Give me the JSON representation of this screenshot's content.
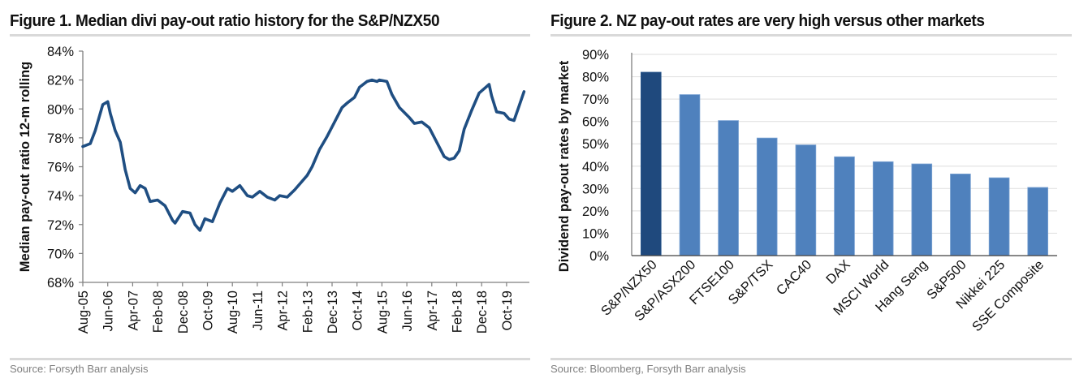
{
  "figures": {
    "left": {
      "title": "Figure 1. Median divi pay-out ratio history for the S&P/NZX50",
      "source": "Source: Forsyth Barr analysis"
    },
    "right": {
      "title": "Figure 2. NZ pay-out rates are very high versus other markets",
      "source": "Source: Bloomberg, Forsyth Barr analysis"
    }
  },
  "colors": {
    "line": "#1f4e82",
    "bar_highlight": "#1f497d",
    "bar": "#4f81bd",
    "grid": "#e3e3e3",
    "axis": "#7f7f7f"
  },
  "chart_data": [
    {
      "type": "line",
      "title": "Median divi pay-out ratio history for the S&P/NZX50",
      "xlabel": "",
      "ylabel": "Median pay-out  ratio 12-m rolling",
      "ylim": [
        68,
        84
      ],
      "yticks": [
        "68%",
        "70%",
        "72%",
        "74%",
        "76%",
        "78%",
        "80%",
        "82%",
        "84%"
      ],
      "ytick_values": [
        68,
        70,
        72,
        74,
        76,
        78,
        80,
        82,
        84
      ],
      "xticks": [
        "Aug-05",
        "Jun-06",
        "Apr-07",
        "Feb-08",
        "Dec-08",
        "Oct-09",
        "Aug-10",
        "Jun-11",
        "Apr-12",
        "Feb-13",
        "Dec-13",
        "Oct-14",
        "Aug-15",
        "Jun-16",
        "Apr-17",
        "Feb-18",
        "Dec-18",
        "Oct-19"
      ],
      "xtick_months": [
        0,
        10,
        20,
        30,
        40,
        50,
        60,
        70,
        80,
        90,
        100,
        110,
        120,
        130,
        140,
        150,
        160,
        170
      ],
      "x_unit": "months since Aug-05",
      "xlim": [
        0,
        178
      ],
      "grid": false,
      "legend": "none",
      "series": [
        {
          "name": "Median pay-out ratio (12-m rolling, %)",
          "x": [
            0,
            3,
            5,
            8,
            10,
            11,
            13,
            15,
            17,
            19,
            21,
            23,
            25,
            27,
            30,
            33,
            36,
            37,
            40,
            43,
            45,
            47,
            49,
            52,
            55,
            58,
            60,
            63,
            66,
            68,
            71,
            74,
            77,
            79,
            82,
            85,
            90,
            92,
            95,
            98,
            101,
            104,
            106,
            109,
            111,
            114,
            116,
            118,
            119,
            122,
            124,
            127,
            131,
            133,
            136,
            139,
            142,
            145,
            147,
            149,
            151,
            153,
            156,
            159,
            161,
            163,
            164,
            166,
            169,
            171,
            173,
            175,
            177
          ],
          "values": [
            77.4,
            77.6,
            78.5,
            80.3,
            80.5,
            79.7,
            78.5,
            77.7,
            75.8,
            74.5,
            74.2,
            74.7,
            74.5,
            73.6,
            73.7,
            73.3,
            72.3,
            72.1,
            72.9,
            72.8,
            72.0,
            71.6,
            72.4,
            72.2,
            73.5,
            74.5,
            74.3,
            74.7,
            74.0,
            73.9,
            74.3,
            73.9,
            73.7,
            74.0,
            73.9,
            74.4,
            75.4,
            76.0,
            77.2,
            78.1,
            79.1,
            80.1,
            80.4,
            80.8,
            81.5,
            81.9,
            82.0,
            81.9,
            82.0,
            81.9,
            81.0,
            80.1,
            79.4,
            79.0,
            79.1,
            78.7,
            77.7,
            76.7,
            76.5,
            76.6,
            77.1,
            78.6,
            79.9,
            81.1,
            81.4,
            81.7,
            80.9,
            79.8,
            79.7,
            79.3,
            79.2,
            80.2,
            81.2
          ]
        }
      ]
    },
    {
      "type": "bar",
      "title": "NZ pay-out rates are very high versus other markets",
      "xlabel": "",
      "ylabel": "Dividend  pay-out rates by market",
      "ylim": [
        0,
        90
      ],
      "yticks": [
        "0%",
        "10%",
        "20%",
        "30%",
        "40%",
        "50%",
        "60%",
        "70%",
        "80%",
        "90%"
      ],
      "ytick_values": [
        0,
        10,
        20,
        30,
        40,
        50,
        60,
        70,
        80,
        90
      ],
      "grid": true,
      "legend": "none",
      "categories": [
        "S&P/NZX50",
        "S&P/ASX200",
        "FTSE100",
        "S&P/TSX",
        "CAC40",
        "DAX",
        "MSCI World",
        "Hang Seng",
        "S&P500",
        "Nikkei 225",
        "SSE Composite"
      ],
      "values": [
        82.0,
        72.0,
        60.4,
        52.6,
        49.5,
        44.2,
        42.0,
        41.0,
        36.5,
        34.8,
        30.5
      ],
      "highlight_index": 0
    }
  ]
}
